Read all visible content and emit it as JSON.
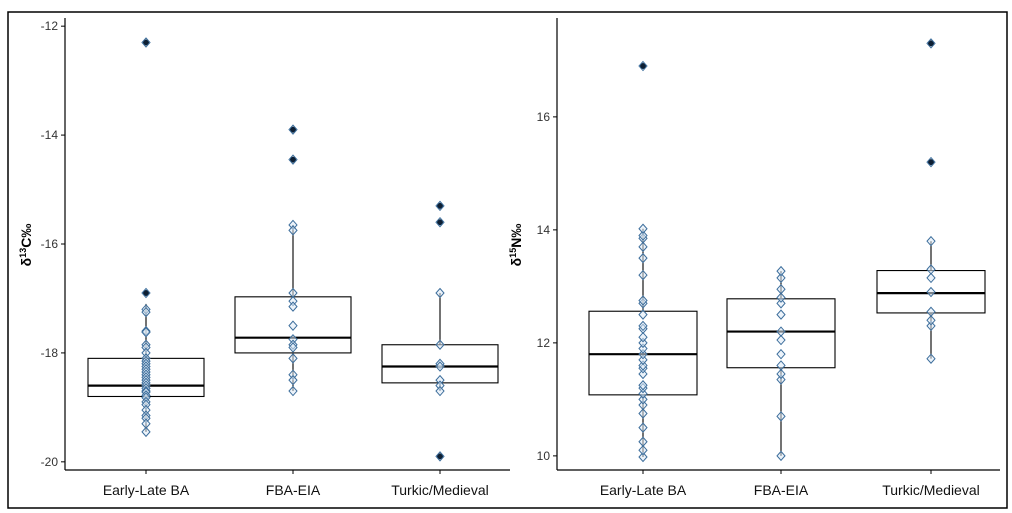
{
  "colors": {
    "point_stroke": "#3d6e9c",
    "point_fill": "#dce9f5",
    "outlier": "#0d1f33"
  },
  "chart_data": [
    {
      "type": "box",
      "ylabel_main": "δ",
      "ylabel_sup": "13",
      "ylabel_rest": "C‰",
      "ylim": [
        -20.15,
        -11.85
      ],
      "yticks": [
        "-12",
        "-14",
        "-16",
        "-18",
        "-20"
      ],
      "ytick_values": [
        -12,
        -14,
        -16,
        -18,
        -20
      ],
      "categories": [
        "Early-Late BA",
        "FBA-EIA",
        "Turkic/Medieval"
      ],
      "boxes": [
        {
          "category": "Early-Late BA",
          "q1": -18.8,
          "median": -18.6,
          "q3": -18.1,
          "whisker_low": -19.45,
          "whisker_high": -17.1,
          "points": [
            -17.2,
            -17.25,
            -17.6,
            -17.62,
            -17.85,
            -17.9,
            -18.0,
            -18.1,
            -18.15,
            -18.2,
            -18.25,
            -18.3,
            -18.35,
            -18.4,
            -18.45,
            -18.5,
            -18.55,
            -18.6,
            -18.65,
            -18.7,
            -18.72,
            -18.78,
            -18.82,
            -18.9,
            -18.95,
            -19.05,
            -19.15,
            -19.2,
            -19.3,
            -19.45
          ],
          "outliers": [
            -12.3,
            -16.9
          ]
        },
        {
          "category": "FBA-EIA",
          "q1": -18.0,
          "median": -17.72,
          "q3": -16.97,
          "whisker_low": -18.7,
          "whisker_high": -15.65,
          "points": [
            -15.65,
            -15.75,
            -16.9,
            -17.05,
            -17.15,
            -17.5,
            -17.75,
            -17.85,
            -17.9,
            -18.1,
            -18.4,
            -18.5,
            -18.7
          ],
          "outliers": [
            -13.9,
            -14.45
          ]
        },
        {
          "category": "Turkic/Medieval",
          "q1": -18.55,
          "median": -18.25,
          "q3": -17.85,
          "whisker_low": -18.7,
          "whisker_high": -16.9,
          "points": [
            -16.9,
            -17.85,
            -18.2,
            -18.25,
            -18.5,
            -18.6,
            -18.7
          ],
          "outliers": [
            -15.3,
            -15.6,
            -19.9
          ]
        }
      ]
    },
    {
      "type": "box",
      "ylabel_main": "δ",
      "ylabel_sup": "15",
      "ylabel_rest": "N‰",
      "ylim": [
        9.75,
        17.75
      ],
      "yticks": [
        "10",
        "12",
        "14",
        "16"
      ],
      "ytick_values": [
        10,
        12,
        14,
        16
      ],
      "categories": [
        "Early-Late BA",
        "FBA-EIA",
        "Turkic/Medieval"
      ],
      "boxes": [
        {
          "category": "Early-Late BA",
          "q1": 11.08,
          "median": 11.8,
          "q3": 12.56,
          "whisker_low": 9.98,
          "whisker_high": 14.02,
          "points": [
            9.98,
            10.1,
            10.25,
            10.5,
            10.75,
            10.9,
            11.0,
            11.1,
            11.2,
            11.25,
            11.45,
            11.55,
            11.6,
            11.7,
            11.8,
            11.9,
            12.0,
            12.1,
            12.25,
            12.3,
            12.5,
            12.7,
            12.75,
            13.2,
            13.5,
            13.7,
            13.85,
            13.9,
            14.02
          ],
          "outliers": [
            16.9
          ]
        },
        {
          "category": "FBA-EIA",
          "q1": 11.56,
          "median": 12.2,
          "q3": 12.78,
          "whisker_low": 10.0,
          "whisker_high": 13.27,
          "points": [
            10.0,
            10.7,
            11.35,
            11.45,
            11.6,
            11.8,
            12.05,
            12.2,
            12.5,
            12.7,
            12.8,
            12.95,
            13.15,
            13.27
          ],
          "outliers": []
        },
        {
          "category": "Turkic/Medieval",
          "q1": 12.53,
          "median": 12.88,
          "q3": 13.28,
          "whisker_low": 11.72,
          "whisker_high": 13.8,
          "points": [
            11.72,
            12.3,
            12.4,
            12.55,
            12.9,
            13.15,
            13.3,
            13.8
          ],
          "outliers": [
            15.2,
            17.3
          ]
        }
      ]
    }
  ]
}
